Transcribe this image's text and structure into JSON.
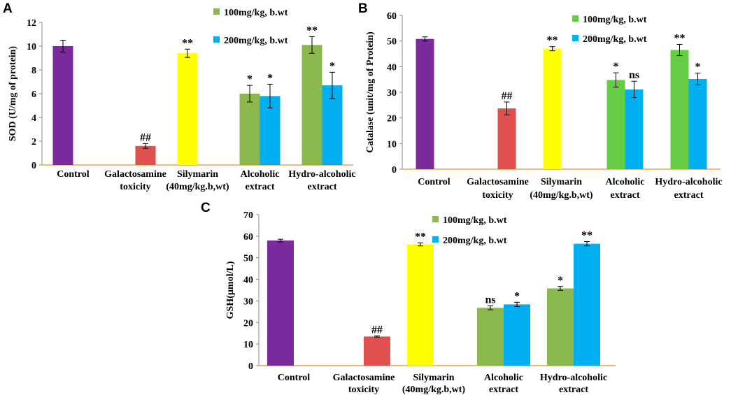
{
  "colors": {
    "control": "#7b2a9d",
    "galactosamine": "#e0504f",
    "silymarin": "#ffff00",
    "dose100": "#8ab84c",
    "dose200": "#00b0f0",
    "axis": "#e8a64c"
  },
  "chart_data": [
    {
      "panel": "A",
      "type": "bar",
      "ylabel": "SOD (U/mg of protein)",
      "ylim": [
        0,
        12
      ],
      "yticks": [
        0,
        2,
        4,
        6,
        8,
        10,
        12
      ],
      "legend": [
        "100mg/kg, b.wt",
        "200mg/kg, b.wt"
      ],
      "legend_colors": [
        "#8ab84c",
        "#00b0f0"
      ],
      "categories": [
        {
          "lines": [
            "Control"
          ]
        },
        {
          "lines": [
            "Galactosamine",
            "toxicity"
          ]
        },
        {
          "lines": [
            "Silymarin",
            "(40mg/kg.b,wt)"
          ]
        },
        {
          "lines": [
            "Alcoholic",
            "extract"
          ]
        },
        {
          "lines": [
            "Hydro-alcoholic",
            "extract"
          ]
        }
      ],
      "bars": [
        {
          "cat": 0,
          "slot": 0,
          "value": 10.0,
          "err": 0.5,
          "color": "#7b2a9d",
          "label": ""
        },
        {
          "cat": 1,
          "slot": 1,
          "value": 1.6,
          "err": 0.2,
          "color": "#e0504f",
          "label": "##"
        },
        {
          "cat": 2,
          "slot": 0,
          "value": 9.4,
          "err": 0.35,
          "color": "#ffff00",
          "label": "**"
        },
        {
          "cat": 3,
          "slot": 0,
          "value": 6.0,
          "err": 0.7,
          "color": "#8ab84c",
          "label": "*"
        },
        {
          "cat": 3,
          "slot": 1,
          "value": 5.8,
          "err": 1.0,
          "color": "#00b0f0",
          "label": "*"
        },
        {
          "cat": 4,
          "slot": 0,
          "value": 10.1,
          "err": 0.7,
          "color": "#8ab84c",
          "label": "**"
        },
        {
          "cat": 4,
          "slot": 1,
          "value": 6.7,
          "err": 1.1,
          "color": "#00b0f0",
          "label": "*"
        }
      ]
    },
    {
      "panel": "B",
      "type": "bar",
      "ylabel": "Catalase (unit/mg of Protein)",
      "ylim": [
        0,
        60
      ],
      "yticks": [
        0,
        10,
        20,
        30,
        40,
        50,
        60
      ],
      "legend": [
        "100mg/kg, b.wt",
        "200mg/kg, b.wt"
      ],
      "legend_colors": [
        "#66cc44",
        "#00b0f0"
      ],
      "categories": [
        {
          "lines": [
            "Control"
          ]
        },
        {
          "lines": [
            "Galactosamine",
            "toxicity"
          ]
        },
        {
          "lines": [
            "Silymarin",
            "(40mg/kg.b,wt)"
          ]
        },
        {
          "lines": [
            "Alcoholic",
            "extract"
          ]
        },
        {
          "lines": [
            "Hydro-alcoholic",
            "extract"
          ]
        }
      ],
      "bars": [
        {
          "cat": 0,
          "slot": 0,
          "value": 50.8,
          "err": 0.8,
          "color": "#7b2a9d",
          "label": ""
        },
        {
          "cat": 1,
          "slot": 1,
          "value": 23.7,
          "err": 2.5,
          "color": "#e0504f",
          "label": "##"
        },
        {
          "cat": 2,
          "slot": 0,
          "value": 47.0,
          "err": 0.8,
          "color": "#ffff00",
          "label": "**"
        },
        {
          "cat": 3,
          "slot": 0,
          "value": 34.8,
          "err": 2.8,
          "color": "#66cc44",
          "label": "*"
        },
        {
          "cat": 3,
          "slot": 1,
          "value": 31.1,
          "err": 3.2,
          "color": "#00b0f0",
          "label": "ns"
        },
        {
          "cat": 4,
          "slot": 0,
          "value": 46.5,
          "err": 2.2,
          "color": "#66cc44",
          "label": "**"
        },
        {
          "cat": 4,
          "slot": 1,
          "value": 35.2,
          "err": 2.3,
          "color": "#00b0f0",
          "label": "*"
        }
      ]
    },
    {
      "panel": "C",
      "type": "bar",
      "ylabel": "GSH(µmol/L)",
      "ylim": [
        0,
        70
      ],
      "yticks": [
        0,
        10,
        20,
        30,
        40,
        50,
        60,
        70
      ],
      "legend": [
        "100mg/kg, b.wt",
        "200mg/kg, b.wt"
      ],
      "legend_colors": [
        "#8ab84c",
        "#00b0f0"
      ],
      "categories": [
        {
          "lines": [
            "Control"
          ]
        },
        {
          "lines": [
            "Galactosamine",
            "toxicity"
          ]
        },
        {
          "lines": [
            "Silymarin",
            "(40mg/kg.b,wt)"
          ]
        },
        {
          "lines": [
            "Alcoholic",
            "extract"
          ]
        },
        {
          "lines": [
            "Hydro-alcoholic",
            "extract"
          ]
        }
      ],
      "bars": [
        {
          "cat": 0,
          "slot": 0,
          "value": 58.0,
          "err": 0.6,
          "color": "#7b2a9d",
          "label": ""
        },
        {
          "cat": 1,
          "slot": 1,
          "value": 13.5,
          "err": 0.3,
          "color": "#e0504f",
          "label": "##"
        },
        {
          "cat": 2,
          "slot": 0,
          "value": 56.2,
          "err": 0.7,
          "color": "#ffff00",
          "label": "**"
        },
        {
          "cat": 3,
          "slot": 0,
          "value": 26.8,
          "err": 0.9,
          "color": "#8ab84c",
          "label": "ns"
        },
        {
          "cat": 3,
          "slot": 1,
          "value": 28.4,
          "err": 1.0,
          "color": "#00b0f0",
          "label": "*"
        },
        {
          "cat": 4,
          "slot": 0,
          "value": 35.8,
          "err": 0.9,
          "color": "#8ab84c",
          "label": "*"
        },
        {
          "cat": 4,
          "slot": 1,
          "value": 56.5,
          "err": 1.0,
          "color": "#00b0f0",
          "label": "**"
        }
      ]
    }
  ]
}
